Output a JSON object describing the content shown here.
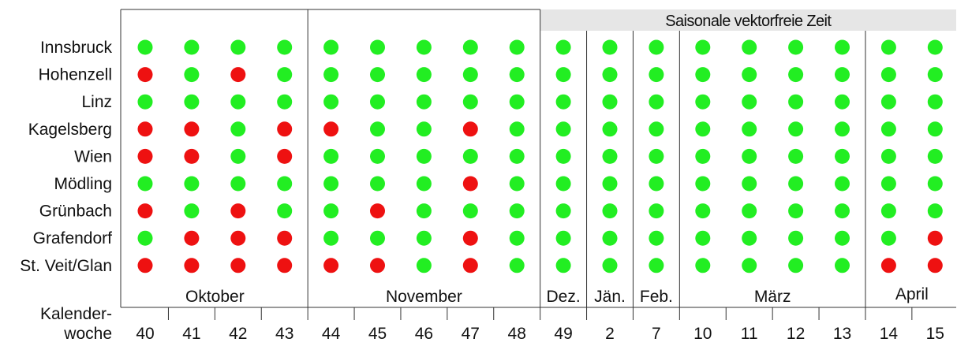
{
  "chart_data": {
    "type": "scatter",
    "banner": "Saisonale vektorfreie Zeit",
    "axis_label_line1": "Kalender-",
    "axis_label_line2": "woche",
    "weeks": [
      "40",
      "41",
      "42",
      "43",
      "44",
      "45",
      "46",
      "47",
      "48",
      "49",
      "2",
      "7",
      "10",
      "11",
      "12",
      "13",
      "14",
      "15"
    ],
    "months": [
      {
        "label": "Oktober",
        "start": 0,
        "end": 3
      },
      {
        "label": "November",
        "start": 4,
        "end": 8
      },
      {
        "label": "Dez.",
        "start": 9,
        "end": 9
      },
      {
        "label": "Jän.",
        "start": 10,
        "end": 10
      },
      {
        "label": "Feb.",
        "start": 11,
        "end": 11
      },
      {
        "label": "März",
        "start": 12,
        "end": 15
      },
      {
        "label": "April",
        "start": 16,
        "end": 17
      }
    ],
    "banner_start_week_index": 9,
    "locations": [
      "Innsbruck",
      "Hohenzell",
      "Linz",
      "Kagelsberg",
      "Wien",
      "Mödling",
      "Grünbach",
      "Grafendorf",
      "St. Veit/Glan"
    ],
    "status_legend": {
      "0": "green",
      "1": "red"
    },
    "status": [
      [
        0,
        0,
        0,
        0,
        0,
        0,
        0,
        0,
        0,
        0,
        0,
        0,
        0,
        0,
        0,
        0,
        0,
        0
      ],
      [
        1,
        0,
        1,
        0,
        0,
        0,
        0,
        0,
        0,
        0,
        0,
        0,
        0,
        0,
        0,
        0,
        0,
        0
      ],
      [
        0,
        0,
        0,
        0,
        0,
        0,
        0,
        0,
        0,
        0,
        0,
        0,
        0,
        0,
        0,
        0,
        0,
        0
      ],
      [
        1,
        1,
        0,
        1,
        1,
        0,
        0,
        1,
        0,
        0,
        0,
        0,
        0,
        0,
        0,
        0,
        0,
        0
      ],
      [
        1,
        1,
        0,
        1,
        0,
        0,
        0,
        0,
        0,
        0,
        0,
        0,
        0,
        0,
        0,
        0,
        0,
        0
      ],
      [
        0,
        0,
        0,
        0,
        0,
        0,
        0,
        1,
        0,
        0,
        0,
        0,
        0,
        0,
        0,
        0,
        0,
        0
      ],
      [
        1,
        0,
        1,
        0,
        0,
        1,
        0,
        0,
        0,
        0,
        0,
        0,
        0,
        0,
        0,
        0,
        0,
        0
      ],
      [
        0,
        1,
        1,
        1,
        0,
        0,
        0,
        1,
        0,
        0,
        0,
        0,
        0,
        0,
        0,
        0,
        0,
        1
      ],
      [
        1,
        1,
        1,
        1,
        1,
        1,
        0,
        1,
        0,
        0,
        0,
        0,
        0,
        0,
        0,
        0,
        1,
        1
      ]
    ]
  },
  "colors": {
    "green": "#22ee22",
    "red": "#ee1111",
    "banner_fill": "#e6e6e6",
    "line": "#333333"
  }
}
